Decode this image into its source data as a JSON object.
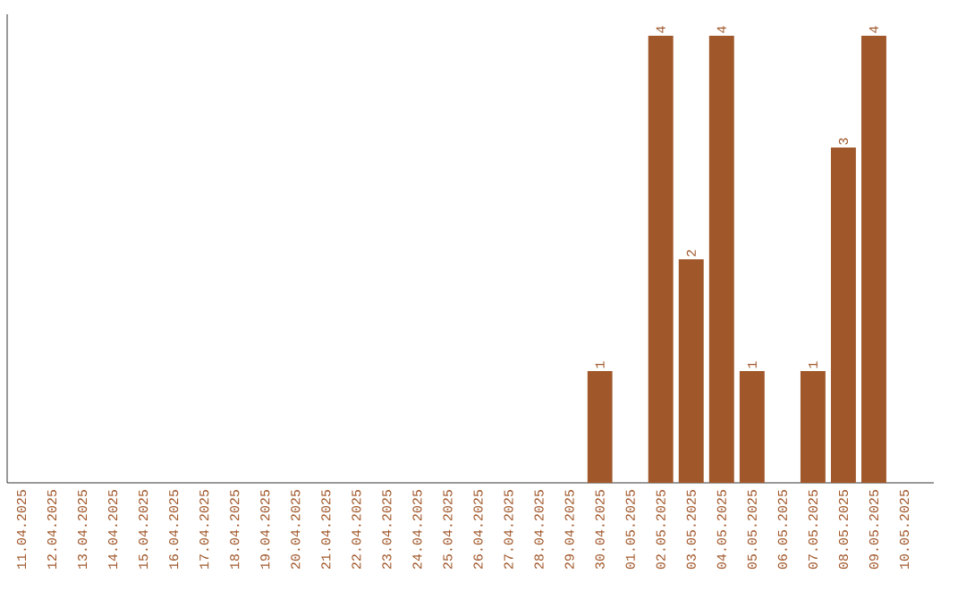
{
  "chart_data": {
    "type": "bar",
    "categories": [
      "11.04.2025",
      "12.04.2025",
      "13.04.2025",
      "14.04.2025",
      "15.04.2025",
      "16.04.2025",
      "17.04.2025",
      "18.04.2025",
      "19.04.2025",
      "20.04.2025",
      "21.04.2025",
      "22.04.2025",
      "23.04.2025",
      "24.04.2025",
      "25.04.2025",
      "26.04.2025",
      "27.04.2025",
      "28.04.2025",
      "29.04.2025",
      "30.04.2025",
      "01.05.2025",
      "02.05.2025",
      "03.05.2025",
      "04.05.2025",
      "05.05.2025",
      "06.05.2025",
      "07.05.2025",
      "08.05.2025",
      "09.05.2025",
      "10.05.2025"
    ],
    "values": [
      null,
      null,
      null,
      null,
      null,
      null,
      null,
      null,
      null,
      null,
      null,
      null,
      null,
      null,
      null,
      null,
      null,
      null,
      null,
      1,
      null,
      4,
      2,
      4,
      1,
      null,
      1,
      3,
      4,
      null
    ],
    "data_labels": true,
    "color": "#a0572a"
  }
}
